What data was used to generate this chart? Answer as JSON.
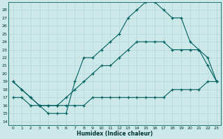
{
  "xlabel": "Humidex (Indice chaleur)",
  "xlim": [
    -0.5,
    23.5
  ],
  "ylim": [
    13.5,
    29.0
  ],
  "yticks": [
    14,
    15,
    16,
    17,
    18,
    19,
    20,
    21,
    22,
    23,
    24,
    25,
    26,
    27,
    28
  ],
  "xticks": [
    0,
    1,
    2,
    3,
    4,
    5,
    6,
    7,
    8,
    9,
    10,
    11,
    12,
    13,
    14,
    15,
    16,
    17,
    18,
    19,
    20,
    21,
    22,
    23
  ],
  "bg_color": "#cce8e8",
  "grid_color": "#b8d8d8",
  "line_color": "#006060",
  "curve_max_x": [
    0,
    1,
    2,
    3,
    4,
    5,
    6,
    7,
    8,
    9,
    10,
    11,
    12,
    13,
    14,
    15,
    16,
    17,
    18,
    19,
    20,
    21,
    22,
    23
  ],
  "curve_max_y": [
    19,
    18,
    17,
    16,
    15,
    15,
    15,
    19,
    22,
    22,
    23,
    24,
    25,
    27,
    28,
    29,
    29,
    28,
    27,
    27,
    24,
    23,
    21,
    19
  ],
  "curve_avg_x": [
    0,
    1,
    2,
    3,
    4,
    5,
    6,
    7,
    8,
    9,
    10,
    11,
    12,
    13,
    14,
    15,
    16,
    17,
    18,
    19,
    20,
    21,
    22,
    23
  ],
  "curve_avg_y": [
    19,
    18,
    17,
    16,
    16,
    16,
    17,
    18,
    19,
    20,
    21,
    21,
    22,
    23,
    24,
    24,
    24,
    24,
    23,
    23,
    23,
    23,
    22,
    19
  ],
  "curve_min_x": [
    0,
    1,
    2,
    3,
    4,
    5,
    6,
    7,
    8,
    9,
    10,
    11,
    12,
    13,
    14,
    15,
    16,
    17,
    18,
    19,
    20,
    21,
    22,
    23
  ],
  "curve_min_y": [
    17,
    17,
    16,
    16,
    16,
    16,
    16,
    16,
    16,
    17,
    17,
    17,
    17,
    17,
    17,
    17,
    17,
    17,
    18,
    18,
    18,
    18,
    19,
    19
  ]
}
